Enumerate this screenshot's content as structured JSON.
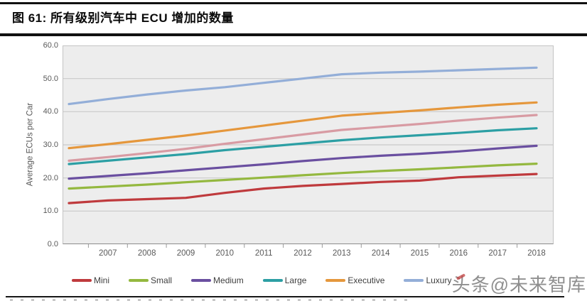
{
  "header": {
    "figure_title": "图 61: 所有级别汽车中 ECU 增加的数量"
  },
  "watermark": {
    "text": "头条@未来智库"
  },
  "chart_data": {
    "type": "line",
    "title": "图 61: 所有级别汽车中 ECU 增加的数量",
    "xlabel": "",
    "ylabel": "Average ECUs per Car",
    "ylim": [
      0,
      60
    ],
    "ytick_step": 10,
    "yticks": [
      "60.0",
      "50.0",
      "40.0",
      "30.0",
      "20.0",
      "10.0",
      "0.0"
    ],
    "x": [
      2006,
      2007,
      2008,
      2009,
      2010,
      2011,
      2012,
      2013,
      2014,
      2015,
      2016,
      2017,
      2018
    ],
    "xtick_labels": [
      "2007",
      "2008",
      "2009",
      "2010",
      "2011",
      "2012",
      "2013",
      "2014",
      "2015",
      "2016",
      "2017",
      "2018"
    ],
    "grid": "horizontal",
    "legend_position": "bottom",
    "plot_background": "#ededed",
    "gridline_color": "#c9c9c9",
    "series": [
      {
        "name": "Mini",
        "color": "#bf3a3d",
        "values": [
          12.4,
          13.2,
          13.6,
          14.0,
          15.5,
          16.8,
          17.6,
          18.2,
          18.8,
          19.2,
          20.2,
          20.7,
          21.2
        ]
      },
      {
        "name": "Small",
        "color": "#94b83f",
        "values": [
          16.8,
          17.4,
          18.0,
          18.7,
          19.4,
          20.1,
          20.8,
          21.5,
          22.1,
          22.6,
          23.2,
          23.8,
          24.3
        ]
      },
      {
        "name": "Medium",
        "color": "#6a4fa0",
        "values": [
          19.8,
          20.6,
          21.4,
          22.3,
          23.2,
          24.1,
          25.1,
          26.0,
          26.7,
          27.3,
          28.0,
          28.9,
          29.7
        ]
      },
      {
        "name": "Large",
        "color": "#2c9fa4",
        "values": [
          24.2,
          25.2,
          26.2,
          27.2,
          28.4,
          29.4,
          30.4,
          31.4,
          32.2,
          32.9,
          33.6,
          34.4,
          35.0
        ]
      },
      {
        "name": "Executive",
        "color": "#e5973c",
        "values": [
          29.0,
          30.2,
          31.5,
          32.8,
          34.3,
          35.8,
          37.3,
          38.8,
          39.6,
          40.4,
          41.3,
          42.1,
          42.8
        ]
      },
      {
        "name": "Luxury",
        "color": "#93aed8",
        "values": [
          42.3,
          43.8,
          45.2,
          46.4,
          47.4,
          48.7,
          50.0,
          51.3,
          51.8,
          52.1,
          52.5,
          52.9,
          53.3
        ]
      },
      {
        "name": "",
        "color": "#d89ba3",
        "values": [
          25.2,
          26.3,
          27.5,
          28.8,
          30.3,
          31.7,
          33.1,
          34.5,
          35.4,
          36.3,
          37.3,
          38.2,
          39.0
        ],
        "note": "seventh line; legend label hidden behind watermark"
      }
    ]
  }
}
